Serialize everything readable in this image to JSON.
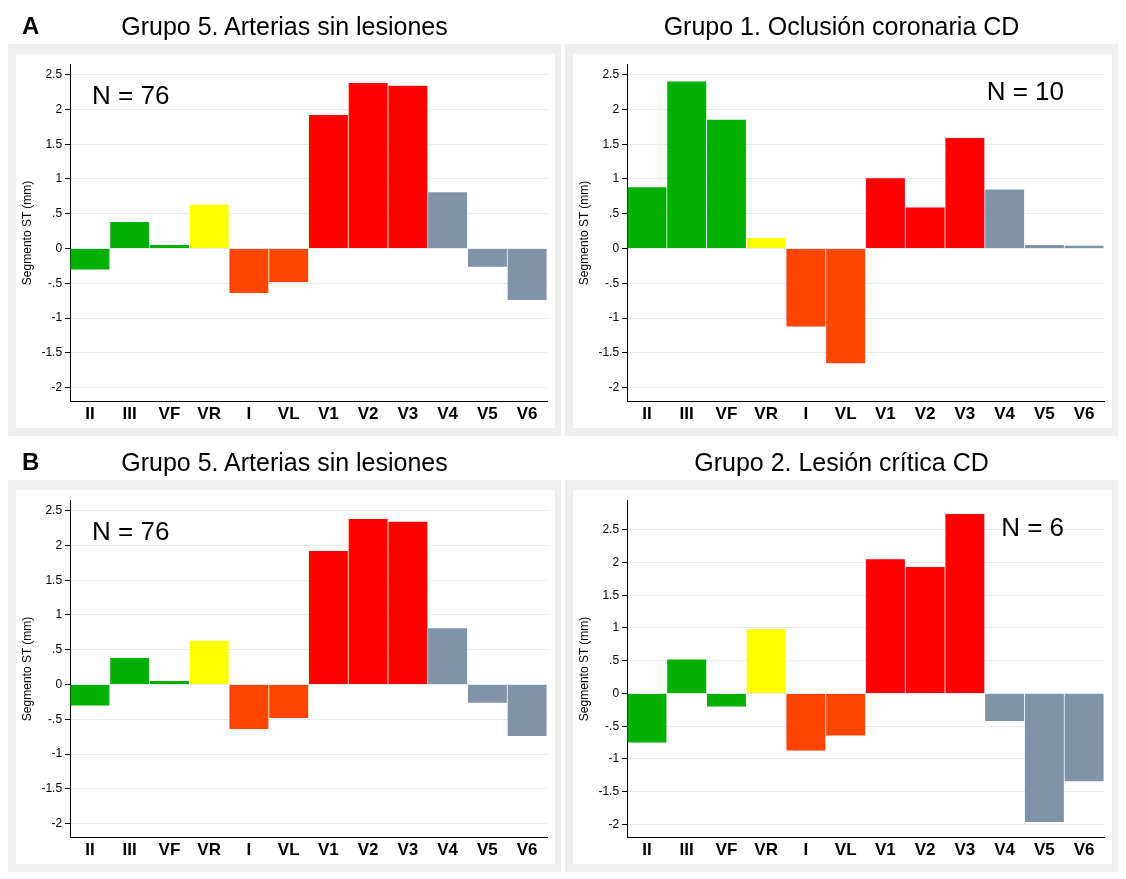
{
  "chart_data": [
    {
      "type": "bar",
      "title": "Grupo 5. Arterias sin lesiones",
      "ylabel": "Segmento ST (mm)",
      "annotations": [
        "A",
        "N = 76"
      ],
      "categories": [
        "II",
        "III",
        "VF",
        "VR",
        "I",
        "VL",
        "V1",
        "V2",
        "V3",
        "V4",
        "V5",
        "V6"
      ],
      "values": [
        -0.3,
        0.38,
        0.05,
        0.63,
        -0.64,
        -0.48,
        1.92,
        2.38,
        2.34,
        0.81,
        -0.26,
        -0.74
      ],
      "colors": [
        "#00b000",
        "#00b000",
        "#00b000",
        "#ffff00",
        "#ff4500",
        "#ff4500",
        "#ff0000",
        "#ff0000",
        "#ff0000",
        "#7f93a9",
        "#7f93a9",
        "#7f93a9"
      ],
      "ylim": [
        -2.2,
        2.65
      ],
      "yticks": [
        {
          "value": -2,
          "label": "-2"
        },
        {
          "value": -1.5,
          "label": "-1.5"
        },
        {
          "value": -1,
          "label": "-1"
        },
        {
          "value": -0.5,
          "label": "-.5"
        },
        0,
        {
          "value": 0.5,
          "label": ".5"
        },
        1,
        1.5,
        2,
        2.5
      ],
      "grid": "y"
    },
    {
      "type": "bar",
      "title": "Grupo 1. Oclusión coronaria CD",
      "ylabel": "Segmento ST (mm)",
      "annotations": [
        "N = 10"
      ],
      "categories": [
        "II",
        "III",
        "VF",
        "VR",
        "I",
        "VL",
        "V1",
        "V2",
        "V3",
        "V4",
        "V5",
        "V6"
      ],
      "values": [
        0.88,
        2.4,
        1.85,
        0.15,
        -1.12,
        -1.65,
        1.01,
        0.59,
        1.59,
        0.85,
        0.05,
        0.04
      ],
      "colors": [
        "#00b000",
        "#00b000",
        "#00b000",
        "#ffff00",
        "#ff4500",
        "#ff4500",
        "#ff0000",
        "#ff0000",
        "#ff0000",
        "#7f93a9",
        "#7f93a9",
        "#7f93a9"
      ],
      "ylim": [
        -2.2,
        2.65
      ],
      "yticks": [
        {
          "value": -2,
          "label": "-2"
        },
        {
          "value": -1.5,
          "label": "-1.5"
        },
        {
          "value": -1,
          "label": "-1"
        },
        {
          "value": -0.5,
          "label": "-.5"
        },
        0,
        {
          "value": 0.5,
          "label": ".5"
        },
        1,
        1.5,
        2,
        2.5
      ],
      "grid": "y"
    },
    {
      "type": "bar",
      "title": "Grupo 5. Arterias sin lesiones",
      "ylabel": "Segmento ST (mm)",
      "annotations": [
        "B",
        "N = 76"
      ],
      "categories": [
        "II",
        "III",
        "VF",
        "VR",
        "I",
        "VL",
        "V1",
        "V2",
        "V3",
        "V4",
        "V5",
        "V6"
      ],
      "values": [
        -0.3,
        0.38,
        0.05,
        0.63,
        -0.64,
        -0.48,
        1.92,
        2.38,
        2.34,
        0.81,
        -0.26,
        -0.74
      ],
      "colors": [
        "#00b000",
        "#00b000",
        "#00b000",
        "#ffff00",
        "#ff4500",
        "#ff4500",
        "#ff0000",
        "#ff0000",
        "#ff0000",
        "#7f93a9",
        "#7f93a9",
        "#7f93a9"
      ],
      "ylim": [
        -2.2,
        2.65
      ],
      "yticks": [
        {
          "value": -2,
          "label": "-2"
        },
        {
          "value": -1.5,
          "label": "-1.5"
        },
        {
          "value": -1,
          "label": "-1"
        },
        {
          "value": -0.5,
          "label": "-.5"
        },
        0,
        {
          "value": 0.5,
          "label": ".5"
        },
        1,
        1.5,
        2,
        2.5
      ],
      "grid": "y"
    },
    {
      "type": "bar",
      "title": "Grupo 2. Lesión crítica CD",
      "ylabel": "Segmento ST (mm)",
      "annotations": [
        "N = 6"
      ],
      "categories": [
        "II",
        "III",
        "VF",
        "VR",
        "I",
        "VL",
        "V1",
        "V2",
        "V3",
        "V4",
        "V5",
        "V6"
      ],
      "values": [
        -0.75,
        0.52,
        -0.2,
        0.98,
        -0.87,
        -0.64,
        2.05,
        1.93,
        2.74,
        -0.42,
        -1.96,
        -1.34
      ],
      "colors": [
        "#00b000",
        "#00b000",
        "#00b000",
        "#ffff00",
        "#ff4500",
        "#ff4500",
        "#ff0000",
        "#ff0000",
        "#ff0000",
        "#7f93a9",
        "#7f93a9",
        "#7f93a9"
      ],
      "ylim": [
        -2.2,
        2.95
      ],
      "yticks": [
        {
          "value": -2,
          "label": "-2"
        },
        {
          "value": -1.5,
          "label": "-1.5"
        },
        {
          "value": -1,
          "label": "-1"
        },
        {
          "value": -0.5,
          "label": "-.5"
        },
        0,
        {
          "value": 0.5,
          "label": ".5"
        },
        1,
        1.5,
        2,
        2.5
      ],
      "grid": "y"
    }
  ]
}
